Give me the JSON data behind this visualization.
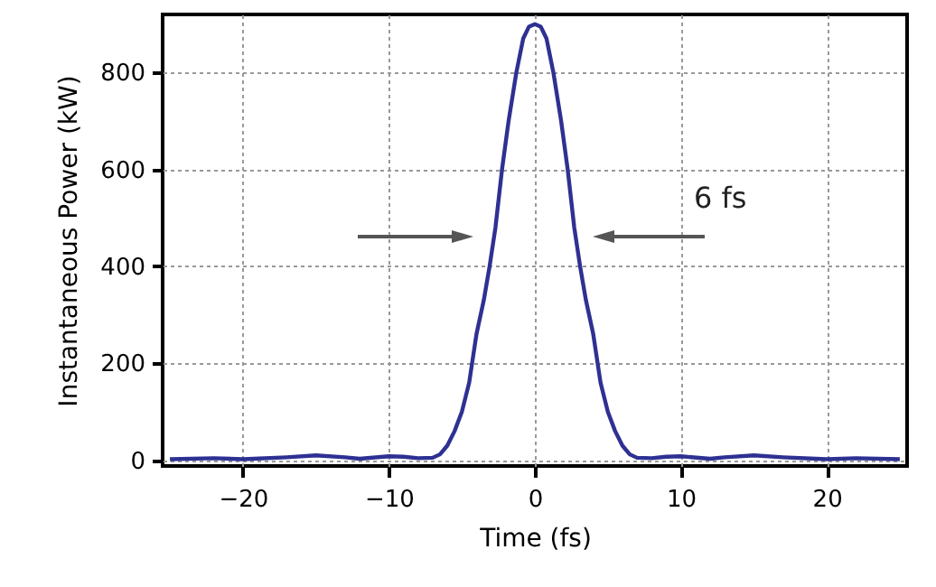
{
  "chart_data": {
    "type": "line",
    "xlabel": "Time (fs)",
    "ylabel": "Instantaneous Power (kW)",
    "x": [
      -25,
      -22,
      -20,
      -17,
      -15,
      -13,
      -12,
      -10,
      -9,
      -8,
      -7,
      -6.5,
      -6,
      -5.5,
      -5,
      -4.5,
      -4.3,
      -4,
      -3.5,
      -3.1,
      -2.7,
      -2.25,
      -1.8,
      -1.27,
      -0.8,
      -0.4,
      0,
      0.4,
      0.8,
      1.27,
      1.8,
      2.25,
      2.7,
      3.1,
      3.5,
      4,
      4.3,
      4.5,
      5,
      5.5,
      6,
      6.5,
      7,
      8,
      9,
      10,
      12,
      13,
      15,
      17,
      20,
      22,
      25
    ],
    "series": [
      {
        "color": "#2e3192",
        "values": [
          2,
          4,
          2,
          6,
          10,
          6,
          3,
          8,
          7,
          4,
          5,
          12,
          30,
          60,
          100,
          160,
          200,
          260,
          330,
          400,
          480,
          600,
          700,
          800,
          870,
          895,
          900,
          895,
          870,
          800,
          700,
          600,
          480,
          400,
          330,
          260,
          200,
          160,
          100,
          60,
          30,
          12,
          5,
          4,
          7,
          8,
          3,
          6,
          10,
          6,
          2,
          4,
          2
        ]
      }
    ],
    "xlim": [
      -25.5,
      25.5
    ],
    "xticks": [
      -20,
      -10,
      0,
      10,
      20
    ],
    "ylim": [
      -12,
      920
    ],
    "yticks": [
      0,
      200,
      400,
      600,
      800
    ],
    "grid": true,
    "annotations": [
      "6 fs"
    ]
  }
}
